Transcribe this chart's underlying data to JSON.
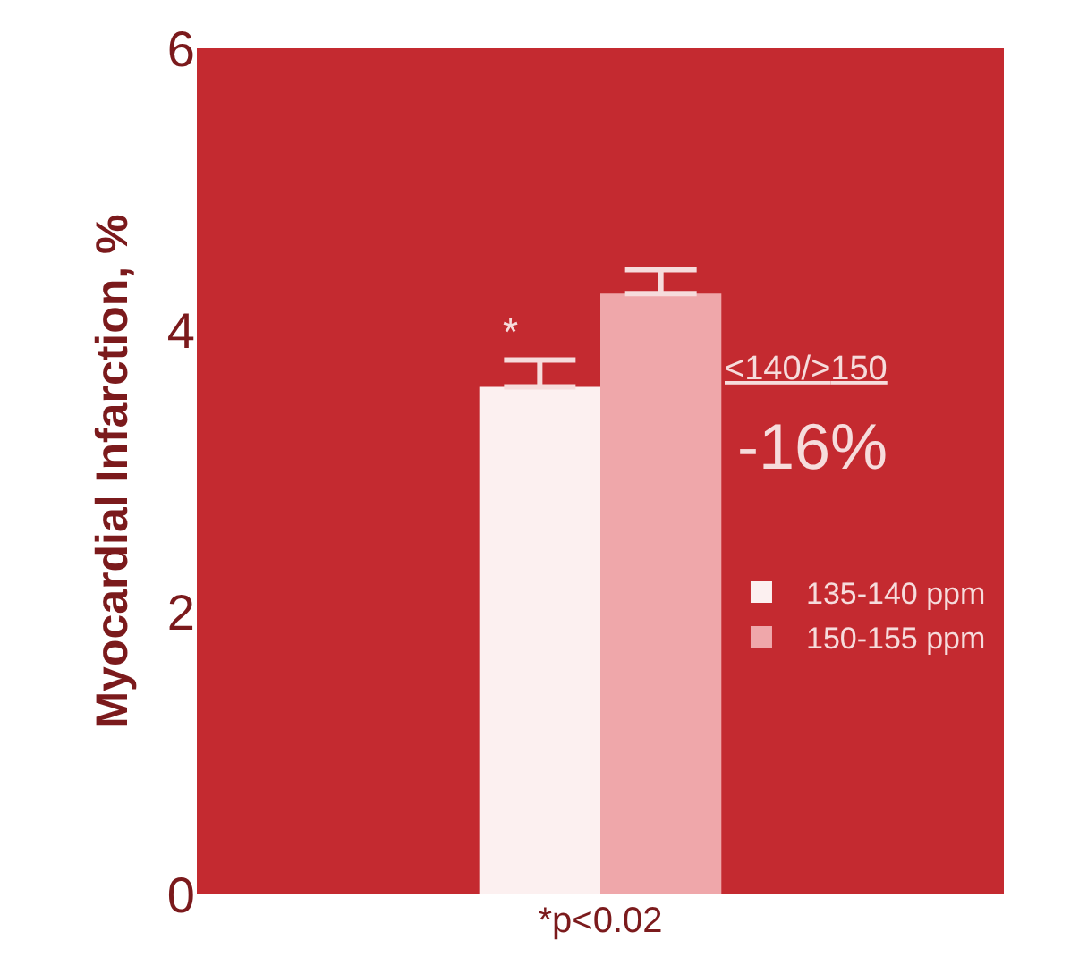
{
  "chart_data": {
    "type": "bar",
    "ylabel": "Myocardial Infarction, %",
    "categories": [
      "*p<0.02"
    ],
    "series": [
      {
        "name": "135-140 ppm",
        "color": "#fcf0f0",
        "values": [
          3.6
        ],
        "errors": [
          [
            3.6,
            3.79
          ]
        ]
      },
      {
        "name": "150-155 ppm",
        "color": "#efa7aa",
        "values": [
          4.26
        ],
        "errors": [
          [
            4.26,
            4.43
          ]
        ]
      }
    ],
    "ylim": [
      0,
      6
    ],
    "yticks": [
      0,
      2,
      4,
      6
    ],
    "grid": false,
    "legend": "right",
    "annotations": [
      "*",
      "<140/>150",
      "-16%"
    ]
  }
}
